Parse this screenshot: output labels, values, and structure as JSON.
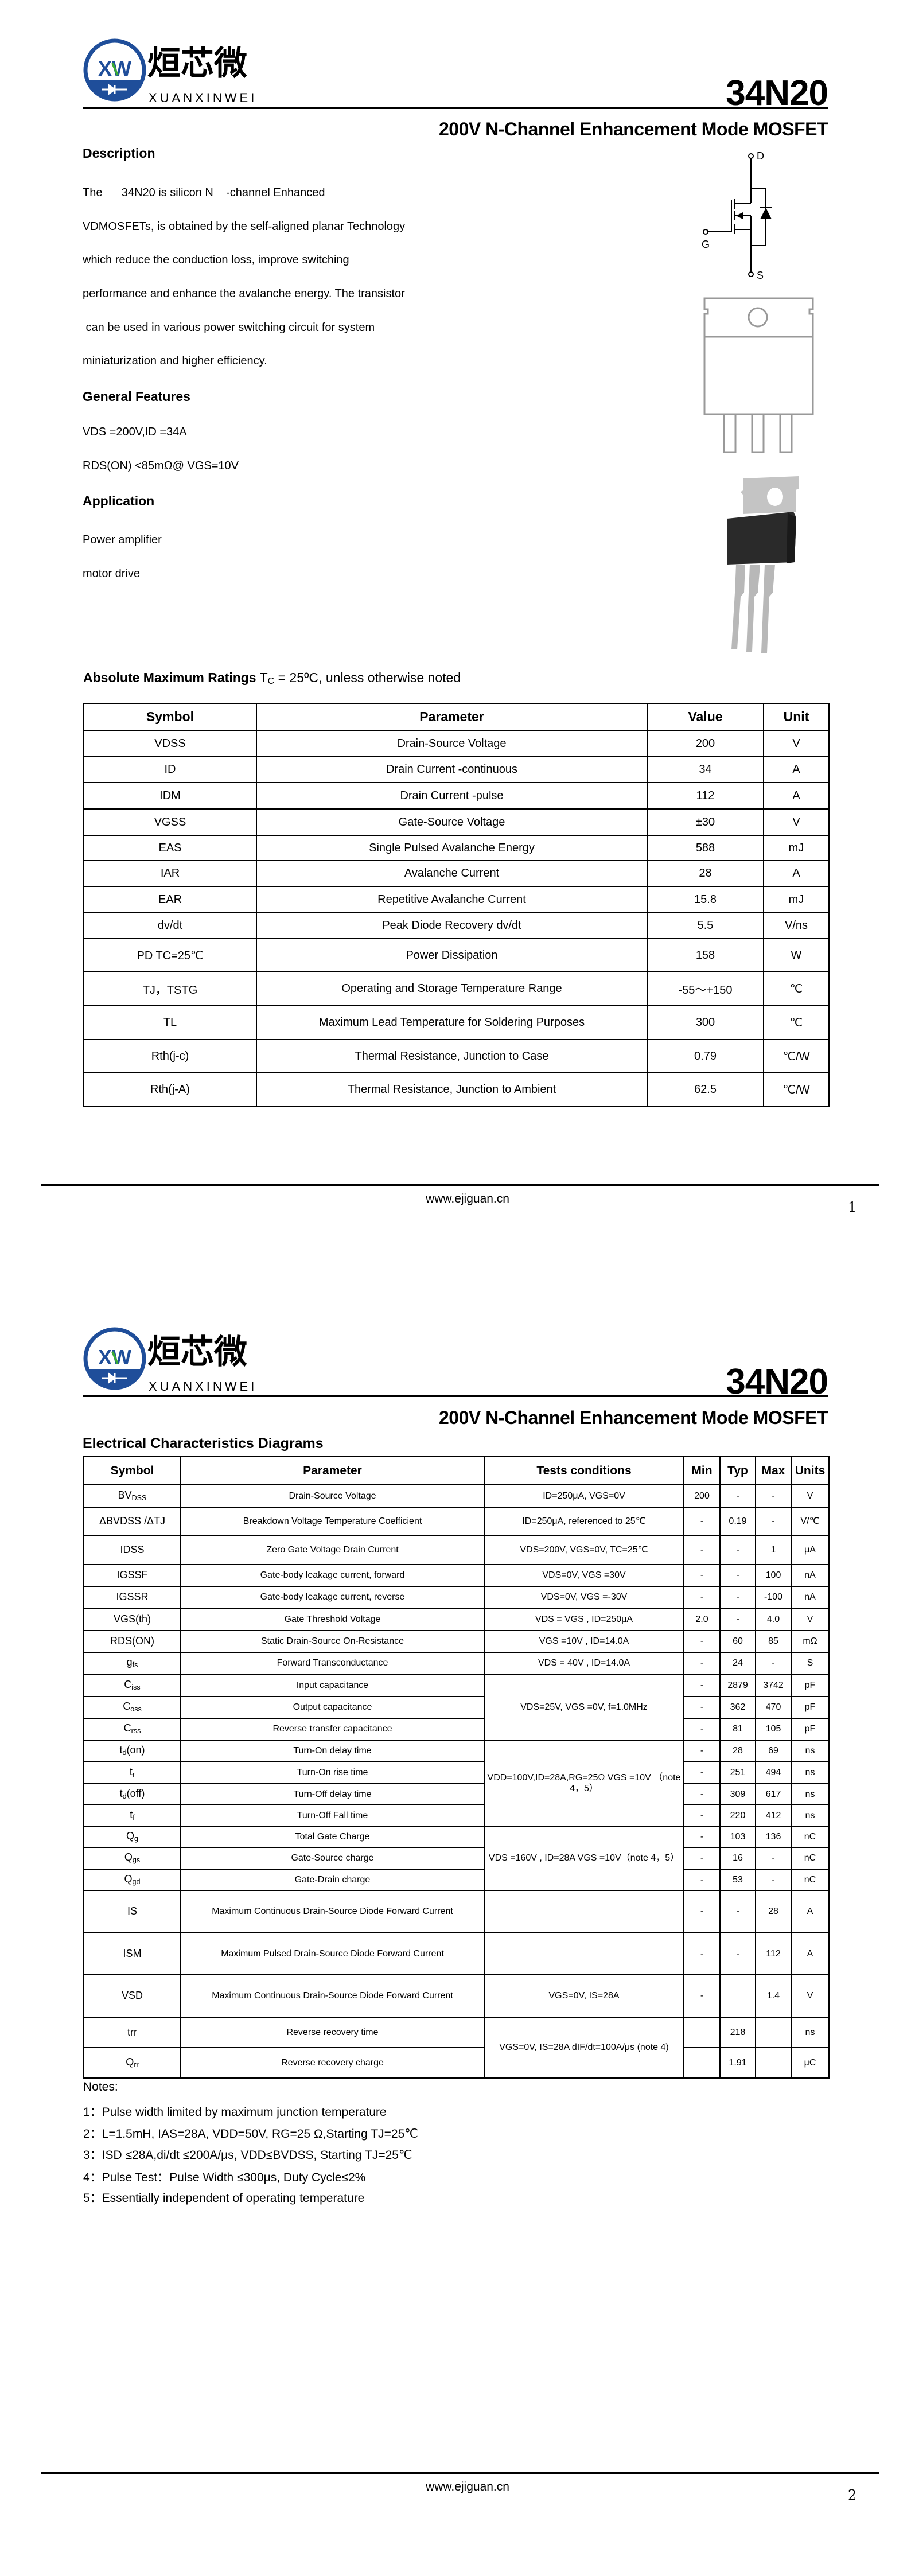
{
  "brand": {
    "logo_mark": "XW",
    "name_cn": "烜芯微",
    "name_en": "XUANXINWEI",
    "ring_color": "#1f4e9a",
    "accent_color": "#3aaa35"
  },
  "header": {
    "part_number": "34N20",
    "subtitle": "200V N-Channel Enhancement Mode MOSFET"
  },
  "page1": {
    "description_heading": "Description",
    "description_lines": [
      "The      34N20 is silicon N    -channel Enhanced",
      "VDMOSFETs, is obtained by the self-aligned planar Technology",
      "which reduce the conduction loss, improve switching",
      "performance and enhance the avalanche energy. The transistor",
      " can be used in various power switching circuit for system",
      "miniaturization and higher efficiency."
    ],
    "features_heading": "General Features",
    "features": [
      "VDS =200V,ID =34A",
      "RDS(ON) <85mΩ@ VGS=10V"
    ],
    "application_heading": "Application",
    "applications": [
      "Power amplifier",
      "motor drive"
    ],
    "schematic_labels": {
      "drain": "D",
      "gate": "G",
      "source": "S"
    },
    "ratings_heading": "Absolute Maximum Ratings",
    "ratings_cond_t": "T",
    "ratings_cond_sub": "C",
    "ratings_cond_rest": " = 25ºC, unless otherwise noted",
    "ratings_table": {
      "headers": [
        "Symbol",
        "Parameter",
        "Value",
        "Unit"
      ],
      "rows": [
        [
          "VDSS",
          "Drain-Source Voltage",
          "200",
          "V"
        ],
        [
          "ID",
          "Drain Current -continuous",
          "34",
          "A"
        ],
        [
          "IDM",
          "Drain Current -pulse",
          "112",
          "A"
        ],
        [
          "VGSS",
          "Gate-Source Voltage",
          "±30",
          "V"
        ],
        [
          "EAS",
          "Single Pulsed Avalanche Energy",
          "588",
          "mJ"
        ],
        [
          "IAR",
          "Avalanche Current",
          "28",
          "A"
        ],
        [
          "EAR",
          "Repetitive Avalanche Current",
          "15.8",
          "mJ"
        ],
        [
          "dv/dt",
          "Peak Diode Recovery dv/dt",
          "5.5",
          "V/ns"
        ],
        [
          "PD  TC=25℃",
          "Power Dissipation",
          "158",
          "W"
        ],
        [
          "TJ，TSTG",
          "Operating and Storage Temperature Range",
          "-55～+150",
          "℃"
        ],
        [
          "TL",
          "Maximum Lead Temperature for Soldering Purposes",
          "300",
          "℃"
        ],
        [
          "Rth(j-c)",
          "Thermal Resistance, Junction to Case",
          "0.79",
          "℃/W"
        ],
        [
          "Rth(j-A)",
          "Thermal Resistance, Junction to Ambient",
          "62.5",
          "℃/W"
        ]
      ]
    },
    "footer_url": "www.ejiguan.cn",
    "page_number": "1"
  },
  "page2": {
    "section_heading": "Electrical Characteristics Diagrams",
    "table": {
      "headers": [
        "Symbol",
        "Parameter",
        "Tests conditions",
        "Min",
        "Typ",
        "Max",
        "Units"
      ],
      "rows": [
        {
          "sym": "BV",
          "sub": "DSS",
          "param": "Drain-Source Voltage",
          "cond": "ID=250μA, VGS=0V",
          "min": "200",
          "typ": "-",
          "max": "-",
          "unit": "V"
        },
        {
          "sym": "ΔBVDSS /ΔTJ",
          "sub": "",
          "param": "Breakdown Voltage Temperature Coefficient",
          "cond": "ID=250μA, referenced to 25℃",
          "min": "-",
          "typ": "0.19",
          "max": "-",
          "unit": "V/℃"
        },
        {
          "sym": "IDSS",
          "sub": "",
          "param": "Zero Gate Voltage Drain Current",
          "cond": "VDS=200V, VGS=0V, TC=25℃",
          "min": "-",
          "typ": "-",
          "max": "1",
          "unit": "μA"
        },
        {
          "sym": "IGSSF",
          "sub": "",
          "param": "Gate-body leakage current, forward",
          "cond": "VDS=0V, VGS =30V",
          "min": "-",
          "typ": "-",
          "max": "100",
          "unit": "nA"
        },
        {
          "sym": "IGSSR",
          "sub": "",
          "param": "Gate-body leakage current, reverse",
          "cond": "VDS=0V, VGS =-30V",
          "min": "-",
          "typ": "-",
          "max": "-100",
          "unit": "nA"
        },
        {
          "sym": "VGS(th)",
          "sub": "",
          "param": "Gate Threshold Voltage",
          "cond": "VDS = VGS , ID=250μA",
          "min": "2.0",
          "typ": "-",
          "max": "4.0",
          "unit": "V"
        },
        {
          "sym": "RDS(ON)",
          "sub": "",
          "param": "Static Drain-Source On-Resistance",
          "cond": "VGS =10V , ID=14.0A",
          "min": "-",
          "typ": "60",
          "max": "85",
          "unit": "mΩ"
        },
        {
          "sym": "g",
          "sub": "fs",
          "param": "Forward Transconductance",
          "cond": "VDS = 40V , ID=14.0A",
          "min": "-",
          "typ": "24",
          "max": "-",
          "unit": "S"
        },
        {
          "sym": "C",
          "sub": "iss",
          "param": "Input capacitance",
          "cond": "VDS=25V, VGS =0V, f=1.0MHz",
          "span": 3,
          "min": "-",
          "typ": "2879",
          "max": "3742",
          "unit": "pF"
        },
        {
          "sym": "C",
          "sub": "oss",
          "param": "Output capacitance",
          "min": "-",
          "typ": "362",
          "max": "470",
          "unit": "pF"
        },
        {
          "sym": "C",
          "sub": "rss",
          "param": "Reverse transfer capacitance",
          "min": "-",
          "typ": "81",
          "max": "105",
          "unit": "pF"
        },
        {
          "sym": "t",
          "sub": "d",
          "sym2": "(on)",
          "param": "Turn-On delay time",
          "cond": "VDD=100V,ID=28A,RG=25Ω   VGS =10V （note 4，5）",
          "span": 4,
          "min": "-",
          "typ": "28",
          "max": "69",
          "unit": "ns"
        },
        {
          "sym": "t",
          "sub": "r",
          "param": "Turn-On rise time",
          "min": "-",
          "typ": "251",
          "max": "494",
          "unit": "ns"
        },
        {
          "sym": "t",
          "sub": "d",
          "sym2": "(off)",
          "param": "Turn-Off delay time",
          "min": "-",
          "typ": "309",
          "max": "617",
          "unit": "ns"
        },
        {
          "sym": "t",
          "sub": "f",
          "param": "Turn-Off Fall time",
          "min": "-",
          "typ": "220",
          "max": "412",
          "unit": "ns"
        },
        {
          "sym": "Q",
          "sub": "g",
          "param": "Total Gate Charge",
          "cond": "VDS =160V , ID=28A VGS =10V（note 4，5）",
          "span": 3,
          "min": "-",
          "typ": "103",
          "max": "136",
          "unit": "nC"
        },
        {
          "sym": "Q",
          "sub": "gs",
          "param": "Gate-Source charge",
          "min": "-",
          "typ": "16",
          "max": "-",
          "unit": "nC"
        },
        {
          "sym": "Q",
          "sub": "gd",
          "param": "Gate-Drain charge",
          "min": "-",
          "typ": "53",
          "max": "-",
          "unit": "nC"
        },
        {
          "sym": "IS",
          "sub": "",
          "param": "Maximum Continuous Drain-Source Diode Forward Current",
          "cond": "",
          "min": "-",
          "typ": "-",
          "max": "28",
          "unit": "A"
        },
        {
          "sym": "ISM",
          "sub": "",
          "param": "Maximum Pulsed Drain-Source Diode Forward Current",
          "cond": "",
          "min": "-",
          "typ": "-",
          "max": "112",
          "unit": "A"
        },
        {
          "sym": "VSD",
          "sub": "",
          "param": "Maximum Continuous Drain-Source Diode Forward Current",
          "cond": "VGS=0V, IS=28A",
          "min": "-",
          "typ": "",
          "max": "1.4",
          "unit": "V"
        },
        {
          "sym": "trr",
          "sub": "",
          "param": "Reverse recovery time",
          "cond": "VGS=0V, IS=28A dIF/dt=100A/μs (note 4)",
          "span": 2,
          "min": "",
          "typ": "218",
          "max": "",
          "unit": "ns"
        },
        {
          "sym": "Q",
          "sub": "rr",
          "param": "Reverse recovery charge",
          "min": "",
          "typ": "1.91",
          "max": "",
          "unit": "μC"
        }
      ]
    },
    "notes_heading": "Notes:",
    "notes": [
      "1：Pulse width limited by maximum junction temperature",
      "2：L=1.5mH, IAS=28A, VDD=50V, RG=25 Ω,Starting TJ=25℃",
      "3：ISD ≤28A,di/dt ≤200A/μs, VDD≤BVDSS, Starting TJ=25℃",
      "4：Pulse Test：Pulse Width ≤300μs, Duty Cycle≤2%",
      "5：Essentially independent of operating temperature"
    ],
    "footer_url": "www.ejiguan.cn",
    "page_number": "2"
  }
}
